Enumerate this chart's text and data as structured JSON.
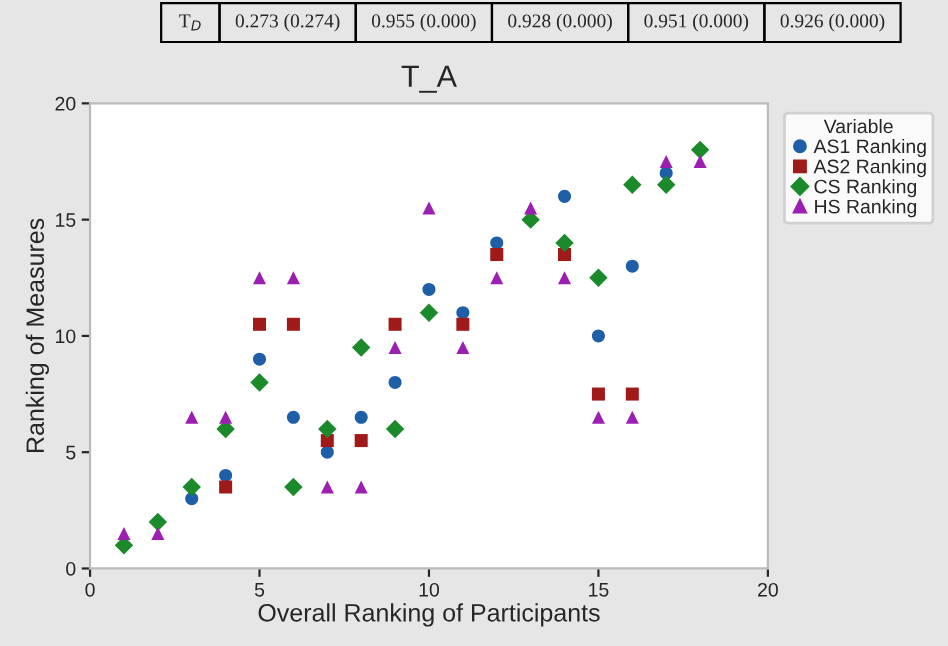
{
  "chart_data": {
    "type": "scatter",
    "title": "T_A",
    "xlabel": "Overall Ranking of Participants",
    "ylabel": "Ranking of Measures",
    "legend_title": "Variable",
    "x": [
      1,
      2,
      3,
      4,
      5,
      6,
      7,
      8,
      9,
      10,
      11,
      12,
      13,
      14,
      15,
      16,
      17,
      18
    ],
    "series": [
      {
        "name": "AS1 Ranking",
        "color": "#1f5fa8",
        "marker": "circle",
        "values": [
          null,
          null,
          3.0,
          4.0,
          9.0,
          6.5,
          5.0,
          6.5,
          8.0,
          12.0,
          11.0,
          14.0,
          null,
          16.0,
          10.0,
          13.0,
          17.0,
          null
        ]
      },
      {
        "name": "AS2 Ranking",
        "color": "#a01a1a",
        "marker": "square",
        "values": [
          null,
          null,
          null,
          3.5,
          10.5,
          10.5,
          5.5,
          5.5,
          10.5,
          null,
          10.5,
          13.5,
          null,
          13.5,
          7.5,
          7.5,
          null,
          null
        ]
      },
      {
        "name": "CS Ranking",
        "color": "#1a8a2a",
        "marker": "diamond",
        "values": [
          1.0,
          2.0,
          3.5,
          6.0,
          8.0,
          3.5,
          6.0,
          9.5,
          6.0,
          11.0,
          null,
          null,
          15.0,
          14.0,
          12.5,
          16.5,
          16.5,
          18.0
        ]
      },
      {
        "name": "HS Ranking",
        "color": "#9b1fb0",
        "marker": "triangle",
        "values": [
          1.5,
          1.5,
          6.5,
          6.5,
          12.5,
          12.5,
          3.5,
          3.5,
          9.5,
          15.5,
          9.5,
          12.5,
          15.5,
          12.5,
          6.5,
          6.5,
          17.5,
          17.5
        ]
      }
    ],
    "xlim": [
      0,
      20
    ],
    "ylim": [
      0,
      20
    ],
    "xticks": [
      0,
      5,
      10,
      15,
      20
    ],
    "yticks": [
      0,
      5,
      10,
      15,
      20
    ],
    "grid": false,
    "legend": "top right",
    "annotations": [
      "T$_{D}$",
      "0.273 (0.274)",
      "0.955 (0.000)",
      "0.928 (0.000)",
      "0.951 (0.000)",
      "0.926 (0.000)"
    ]
  }
}
